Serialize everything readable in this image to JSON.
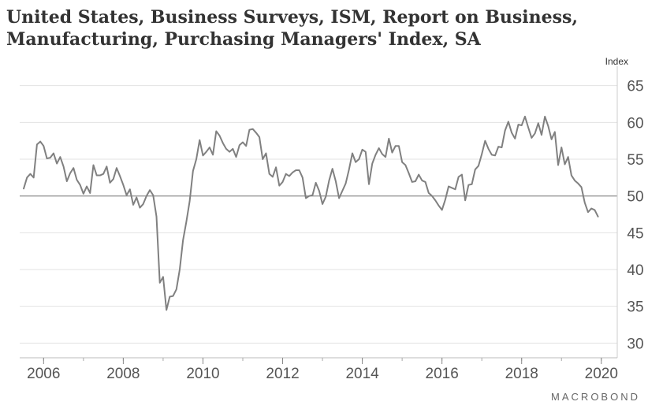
{
  "chart_data": {
    "type": "line",
    "title_line1": "United States, Business Surveys, ISM, Report on Business,",
    "title_line2": "Manufacturing, Purchasing Managers' Index, SA",
    "ylabel": "Index",
    "xlabel": "",
    "ylim": [
      28,
      67
    ],
    "xlim": [
      2005.4,
      2020.4
    ],
    "y_ticks": [
      30,
      35,
      40,
      45,
      50,
      55,
      60,
      65
    ],
    "x_ticks": [
      2006,
      2008,
      2010,
      2012,
      2014,
      2016,
      2018,
      2020
    ],
    "reference_line": 50,
    "grid": "horizontal",
    "line_color": "#808080",
    "series": [
      {
        "values": [
          51.0,
          52.5,
          53.0,
          52.5,
          57.0,
          57.4,
          56.8,
          55.1,
          55.2,
          55.8,
          54.4,
          55.3,
          54.0,
          52.0,
          53.1,
          53.8,
          52.2,
          51.5,
          50.3,
          51.3,
          50.4,
          54.2,
          52.8,
          52.8,
          53.0,
          54.0,
          51.8,
          52.3,
          53.8,
          52.7,
          51.5,
          50.1,
          50.9,
          48.8,
          49.8,
          48.4,
          48.9,
          50.0,
          50.8,
          50.1,
          47.2,
          38.2,
          39.0,
          34.5,
          36.3,
          36.4,
          37.3,
          40.0,
          44.0,
          46.5,
          49.3,
          53.4,
          55.0,
          57.6,
          55.5,
          56.0,
          56.6,
          55.6,
          58.8,
          58.2,
          57.2,
          56.4,
          56.0,
          56.4,
          55.3,
          56.9,
          57.3,
          56.8,
          59.0,
          59.1,
          58.6,
          58.0,
          55.0,
          55.8,
          53.0,
          52.6,
          53.9,
          51.4,
          51.9,
          53.0,
          52.7,
          53.2,
          53.5,
          53.5,
          52.5,
          49.7,
          50.0,
          50.1,
          51.8,
          50.7,
          48.9,
          49.9,
          52.1,
          53.7,
          52.0,
          49.7,
          50.7,
          51.7,
          53.6,
          55.8,
          54.6,
          55.0,
          56.3,
          56.0,
          51.6,
          54.4,
          55.6,
          56.5,
          55.7,
          55.3,
          57.8,
          55.9,
          56.8,
          56.8,
          54.6,
          54.2,
          53.1,
          51.9,
          52.0,
          52.9,
          52.1,
          51.9,
          50.4,
          50.0,
          49.4,
          48.7,
          48.1,
          49.5,
          51.3,
          51.1,
          50.9,
          52.6,
          52.9,
          49.4,
          51.5,
          51.6,
          53.6,
          54.1,
          55.7,
          57.5,
          56.4,
          55.6,
          55.5,
          56.7,
          56.6,
          58.9,
          60.1,
          58.6,
          57.8,
          59.7,
          59.6,
          60.8,
          59.3,
          57.9,
          58.5,
          59.9,
          58.3,
          60.8,
          59.5,
          57.7,
          58.7,
          54.2,
          56.6,
          54.3,
          55.3,
          52.8,
          52.1,
          51.7,
          51.2,
          49.1,
          47.8,
          48.3,
          48.1,
          47.2
        ]
      }
    ]
  },
  "footer": {
    "brand": "MACROBOND"
  }
}
